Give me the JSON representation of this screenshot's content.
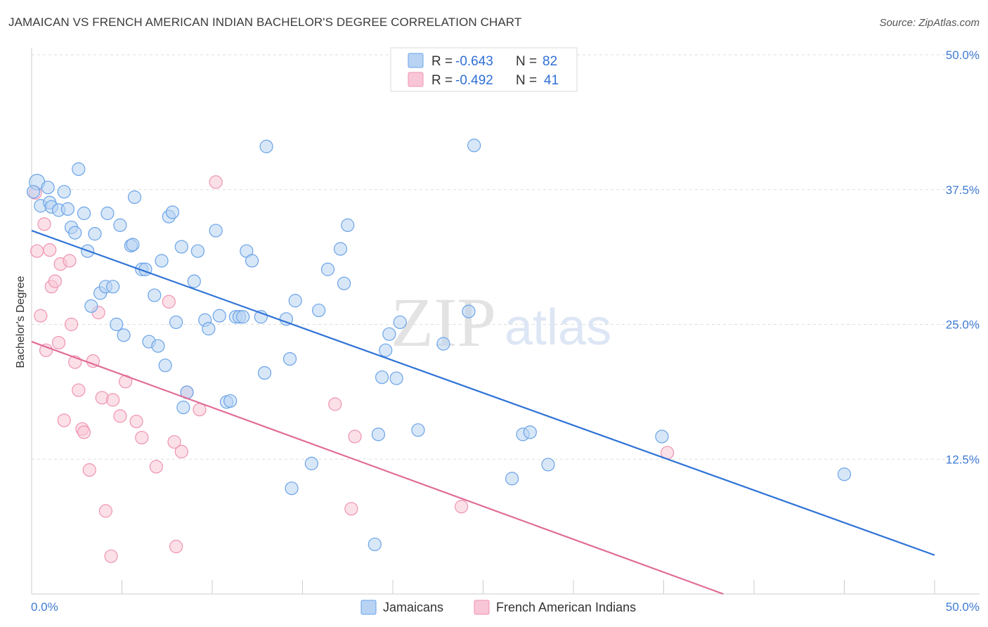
{
  "header": {
    "title": "JAMAICAN VS FRENCH AMERICAN INDIAN BACHELOR'S DEGREE CORRELATION CHART",
    "source": "Source: ZipAtlas.com"
  },
  "watermark": {
    "zip": "ZIP",
    "atlas": "atlas"
  },
  "colors": {
    "blue": "#6aa3e8",
    "blue_fill": "#b8d3f3",
    "blue_line": "#2f73d6",
    "pink": "#ef93b1",
    "pink_fill": "#f8c6d6",
    "pink_line": "#e06c97",
    "axis_text": "#3f7bd3",
    "grid": "#dddddd"
  },
  "legend": {
    "rows": [
      {
        "r_label": "R =",
        "r_value": "-0.643",
        "n_label": "N =",
        "n_value": "82"
      },
      {
        "r_label": "R =",
        "r_value": "-0.492",
        "n_label": "N =",
        "n_value": "41"
      }
    ]
  },
  "chart_data": {
    "type": "scatter",
    "title": "JAMAICAN VS FRENCH AMERICAN INDIAN BACHELOR'S DEGREE CORRELATION CHART",
    "xlabel": "",
    "ylabel": "Bachelor's Degree",
    "xlim": [
      0,
      50
    ],
    "ylim": [
      0,
      50
    ],
    "x_tick_labels": [
      "0.0%",
      "50.0%"
    ],
    "y_ticks": [
      12.5,
      25.0,
      37.5,
      50.0
    ],
    "y_tick_labels": [
      "12.5%",
      "25.0%",
      "37.5%",
      "50.0%"
    ],
    "grid": true,
    "series": [
      {
        "name": "Jamaicans",
        "color": "#6aa3e8",
        "r": -0.643,
        "n": 82,
        "trend": {
          "x": [
            0,
            50
          ],
          "y": [
            33.7,
            3.6
          ]
        },
        "points": [
          [
            0.3,
            38.2
          ],
          [
            0.1,
            37.3
          ],
          [
            0.5,
            36.0
          ],
          [
            0.9,
            37.7
          ],
          [
            1.0,
            36.3
          ],
          [
            1.1,
            35.9
          ],
          [
            1.5,
            35.6
          ],
          [
            1.8,
            37.3
          ],
          [
            2.0,
            35.7
          ],
          [
            2.2,
            34.0
          ],
          [
            2.6,
            39.4
          ],
          [
            2.9,
            35.3
          ],
          [
            2.4,
            33.5
          ],
          [
            3.1,
            31.8
          ],
          [
            3.5,
            33.4
          ],
          [
            3.3,
            26.7
          ],
          [
            3.8,
            27.9
          ],
          [
            4.1,
            28.5
          ],
          [
            4.2,
            35.3
          ],
          [
            4.5,
            28.5
          ],
          [
            4.7,
            25.0
          ],
          [
            4.9,
            34.2
          ],
          [
            5.1,
            24.0
          ],
          [
            5.5,
            32.3
          ],
          [
            5.6,
            32.4
          ],
          [
            5.7,
            36.8
          ],
          [
            6.1,
            30.1
          ],
          [
            6.3,
            30.1
          ],
          [
            6.5,
            23.4
          ],
          [
            6.8,
            27.7
          ],
          [
            7.0,
            23.0
          ],
          [
            7.2,
            30.9
          ],
          [
            7.4,
            21.2
          ],
          [
            7.6,
            35.0
          ],
          [
            7.8,
            35.4
          ],
          [
            8.0,
            25.2
          ],
          [
            8.3,
            32.2
          ],
          [
            8.4,
            17.3
          ],
          [
            8.6,
            18.7
          ],
          [
            9.0,
            29.0
          ],
          [
            9.2,
            31.8
          ],
          [
            9.6,
            25.4
          ],
          [
            9.8,
            24.6
          ],
          [
            10.2,
            33.7
          ],
          [
            10.4,
            25.8
          ],
          [
            10.8,
            17.8
          ],
          [
            11.0,
            17.9
          ],
          [
            11.3,
            25.7
          ],
          [
            11.5,
            25.7
          ],
          [
            11.7,
            25.7
          ],
          [
            11.9,
            31.8
          ],
          [
            12.2,
            30.9
          ],
          [
            12.7,
            25.7
          ],
          [
            12.9,
            20.5
          ],
          [
            13.0,
            41.5
          ],
          [
            14.1,
            25.5
          ],
          [
            14.3,
            21.8
          ],
          [
            14.4,
            9.8
          ],
          [
            14.6,
            27.2
          ],
          [
            15.5,
            12.1
          ],
          [
            15.9,
            26.3
          ],
          [
            16.4,
            30.1
          ],
          [
            17.1,
            32.0
          ],
          [
            17.3,
            28.8
          ],
          [
            17.5,
            34.2
          ],
          [
            19.0,
            4.6
          ],
          [
            19.2,
            14.8
          ],
          [
            19.4,
            20.1
          ],
          [
            19.6,
            22.6
          ],
          [
            19.8,
            24.1
          ],
          [
            20.2,
            20.0
          ],
          [
            20.4,
            25.2
          ],
          [
            21.4,
            15.2
          ],
          [
            22.8,
            23.2
          ],
          [
            24.2,
            26.2
          ],
          [
            24.5,
            41.6
          ],
          [
            26.6,
            10.7
          ],
          [
            27.2,
            14.8
          ],
          [
            27.6,
            15.0
          ],
          [
            28.6,
            12.0
          ],
          [
            34.9,
            14.6
          ],
          [
            45.0,
            11.1
          ]
        ]
      },
      {
        "name": "French American Indians",
        "color": "#ef93b1",
        "r": -0.492,
        "n": 41,
        "trend": {
          "x": [
            0,
            38.3
          ],
          "y": [
            23.4,
            0
          ]
        },
        "points": [
          [
            0.2,
            37.2
          ],
          [
            0.3,
            31.8
          ],
          [
            0.5,
            25.8
          ],
          [
            0.7,
            34.3
          ],
          [
            0.8,
            22.6
          ],
          [
            1.0,
            31.9
          ],
          [
            1.1,
            28.5
          ],
          [
            1.3,
            29.0
          ],
          [
            1.5,
            23.3
          ],
          [
            1.6,
            30.6
          ],
          [
            1.8,
            16.1
          ],
          [
            2.1,
            30.9
          ],
          [
            2.2,
            25.0
          ],
          [
            2.4,
            21.5
          ],
          [
            2.6,
            18.9
          ],
          [
            2.8,
            15.3
          ],
          [
            2.9,
            15.0
          ],
          [
            3.2,
            11.5
          ],
          [
            3.4,
            21.6
          ],
          [
            3.7,
            26.1
          ],
          [
            3.9,
            18.2
          ],
          [
            4.1,
            7.7
          ],
          [
            4.4,
            3.5
          ],
          [
            4.5,
            18.0
          ],
          [
            4.9,
            16.5
          ],
          [
            5.2,
            19.7
          ],
          [
            5.8,
            16.0
          ],
          [
            6.1,
            14.5
          ],
          [
            6.9,
            11.8
          ],
          [
            7.6,
            27.1
          ],
          [
            7.9,
            14.1
          ],
          [
            8.0,
            4.4
          ],
          [
            8.3,
            13.2
          ],
          [
            8.6,
            18.7
          ],
          [
            9.3,
            17.1
          ],
          [
            10.2,
            38.2
          ],
          [
            16.8,
            17.6
          ],
          [
            17.7,
            7.9
          ],
          [
            17.9,
            14.6
          ],
          [
            23.8,
            8.1
          ],
          [
            35.2,
            13.1
          ]
        ]
      }
    ]
  }
}
